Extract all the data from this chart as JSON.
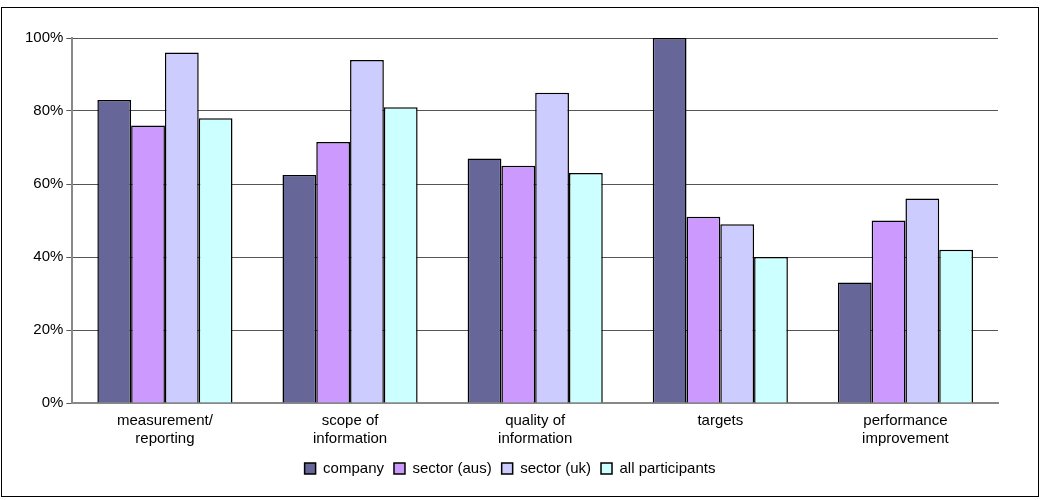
{
  "chart_data": {
    "type": "bar",
    "categories": [
      "measurement/ reporting",
      "scope of information",
      "quality of information",
      "targets",
      "performance improvement"
    ],
    "series": [
      {
        "name": "company",
        "color": "#666699",
        "values": [
          83,
          62.5,
          67,
          100,
          33
        ]
      },
      {
        "name": "sector (aus)",
        "color": "#cc99ff",
        "values": [
          76,
          71.5,
          65,
          51,
          50
        ]
      },
      {
        "name": "sector (uk)",
        "color": "#ccccff",
        "values": [
          96,
          94,
          85,
          49,
          56
        ]
      },
      {
        "name": "all participants",
        "color": "#ccffff",
        "values": [
          78,
          81,
          63,
          40,
          42
        ]
      }
    ],
    "ylim": [
      0,
      100
    ],
    "yticks": [
      {
        "value": 0,
        "label": "0%"
      },
      {
        "value": 20,
        "label": "20%"
      },
      {
        "value": 40,
        "label": "40%"
      },
      {
        "value": 60,
        "label": "60%"
      },
      {
        "value": 80,
        "label": "80%"
      },
      {
        "value": 100,
        "label": "100%"
      }
    ],
    "grid": "y",
    "legend": "bottom"
  }
}
